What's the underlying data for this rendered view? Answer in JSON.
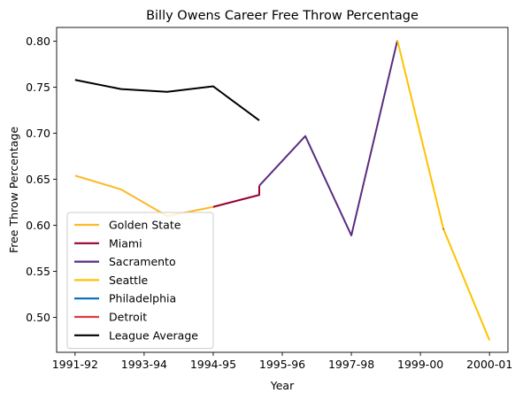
{
  "chart_data": {
    "type": "line",
    "title": "Billy Owens Career Free Throw Percentage",
    "xlabel": "Year",
    "ylabel": "Free Throw Percentage",
    "x_ticks": [
      {
        "x": 0,
        "label": "1991-92"
      },
      {
        "x": 1.5,
        "label": "1993-94"
      },
      {
        "x": 3,
        "label": "1994-95"
      },
      {
        "x": 4.5,
        "label": "1995-96"
      },
      {
        "x": 6,
        "label": "1997-98"
      },
      {
        "x": 7.5,
        "label": "1999-00"
      },
      {
        "x": 9,
        "label": "2000-01"
      }
    ],
    "y_ticks": [
      0.5,
      0.55,
      0.6,
      0.65,
      0.7,
      0.75,
      0.8
    ],
    "xlim": [
      -0.4,
      9.4
    ],
    "ylim": [
      0.462,
      0.815
    ],
    "legend_position": "lower-left",
    "series": [
      {
        "name": "Golden State",
        "color": "#FDB927",
        "points": [
          [
            0,
            0.654
          ],
          [
            1,
            0.639
          ],
          [
            2,
            0.61
          ],
          [
            3,
            0.62
          ]
        ]
      },
      {
        "name": "Miami",
        "color": "#98002E",
        "points": [
          [
            3,
            0.62
          ],
          [
            4,
            0.633
          ],
          [
            4,
            0.643
          ]
        ]
      },
      {
        "name": "Sacramento",
        "color": "#5A2D81",
        "points": [
          [
            4,
            0.643
          ],
          [
            5,
            0.697
          ],
          [
            6,
            0.589
          ],
          [
            7,
            0.801
          ]
        ]
      },
      {
        "name": "Seattle",
        "color": "#FFC200",
        "points": [
          [
            7,
            0.801
          ],
          [
            8,
            0.596
          ],
          [
            9,
            0.475
          ]
        ]
      },
      {
        "name": "Philadelphia",
        "color": "#006BB6",
        "points": [
          [
            8,
            0.596
          ]
        ]
      },
      {
        "name": "Detroit",
        "color": "#E03A3E",
        "points": [
          [
            8,
            0.596
          ]
        ]
      },
      {
        "name": "League Average",
        "color": "#000000",
        "points": [
          [
            0,
            0.758
          ],
          [
            1,
            0.748
          ],
          [
            2,
            0.745
          ],
          [
            3,
            0.751
          ],
          [
            4,
            0.714
          ]
        ]
      }
    ]
  }
}
